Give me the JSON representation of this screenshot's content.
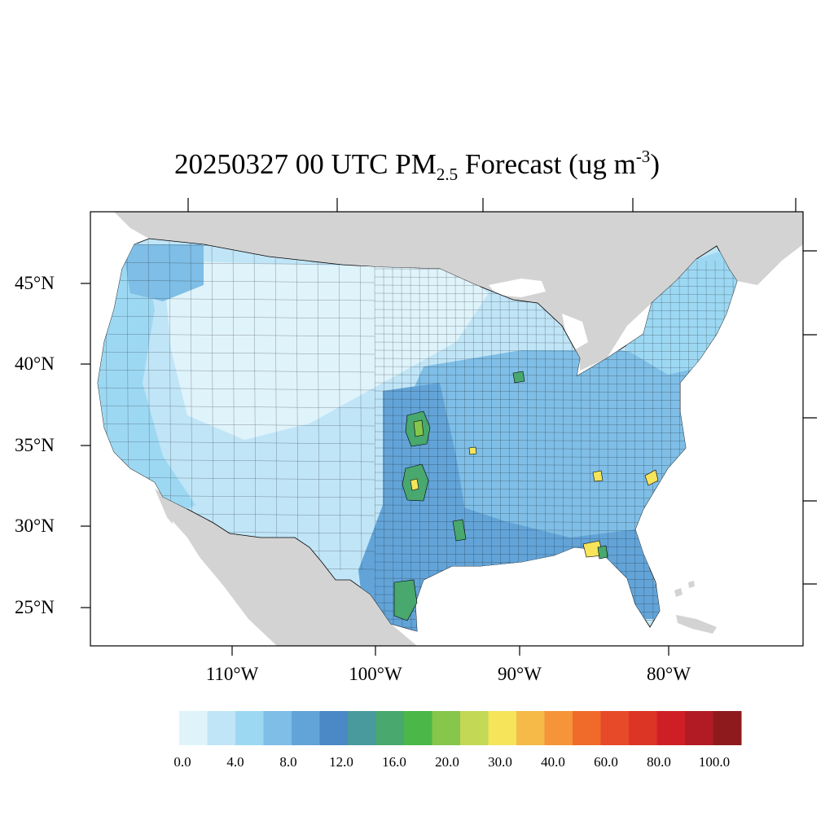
{
  "title": {
    "prefix": "20250327 00 UTC PM",
    "subscript": "2.5",
    "middle": " Forecast (ug m",
    "superscript": "-3",
    "suffix": ")"
  },
  "lat_labels": [
    "45°N",
    "40°N",
    "35°N",
    "30°N",
    "25°N"
  ],
  "lon_labels": [
    "110°W",
    "100°W",
    "90°W",
    "80°W"
  ],
  "colorbar": {
    "colors": [
      "#dff3fb",
      "#c0e5f7",
      "#9dd8f3",
      "#7fbee6",
      "#63a4d8",
      "#4a88c6",
      "#489a9c",
      "#48a86e",
      "#4bb748",
      "#85c64b",
      "#c3d855",
      "#f6e45a",
      "#f5ba48",
      "#f59438",
      "#f06a2a",
      "#e64a28",
      "#dc3525",
      "#ce1f26",
      "#b31b24",
      "#8f1a1d"
    ],
    "tick_labels": [
      "0.0",
      "4.0",
      "8.0",
      "12.0",
      "16.0",
      "20.0",
      "30.0",
      "40.0",
      "60.0",
      "80.0",
      "100.0"
    ]
  },
  "map": {
    "land_outside_color": "#d3d3d3",
    "water_color": "#ffffff",
    "background_concentration_color": "#c0e5f7",
    "hotspot_colors": {
      "low": "#9dd8f3",
      "moderate": "#63a4d8",
      "elevated": "#48a86e",
      "high": "#85c64b",
      "very_high": "#f6e45a"
    }
  }
}
